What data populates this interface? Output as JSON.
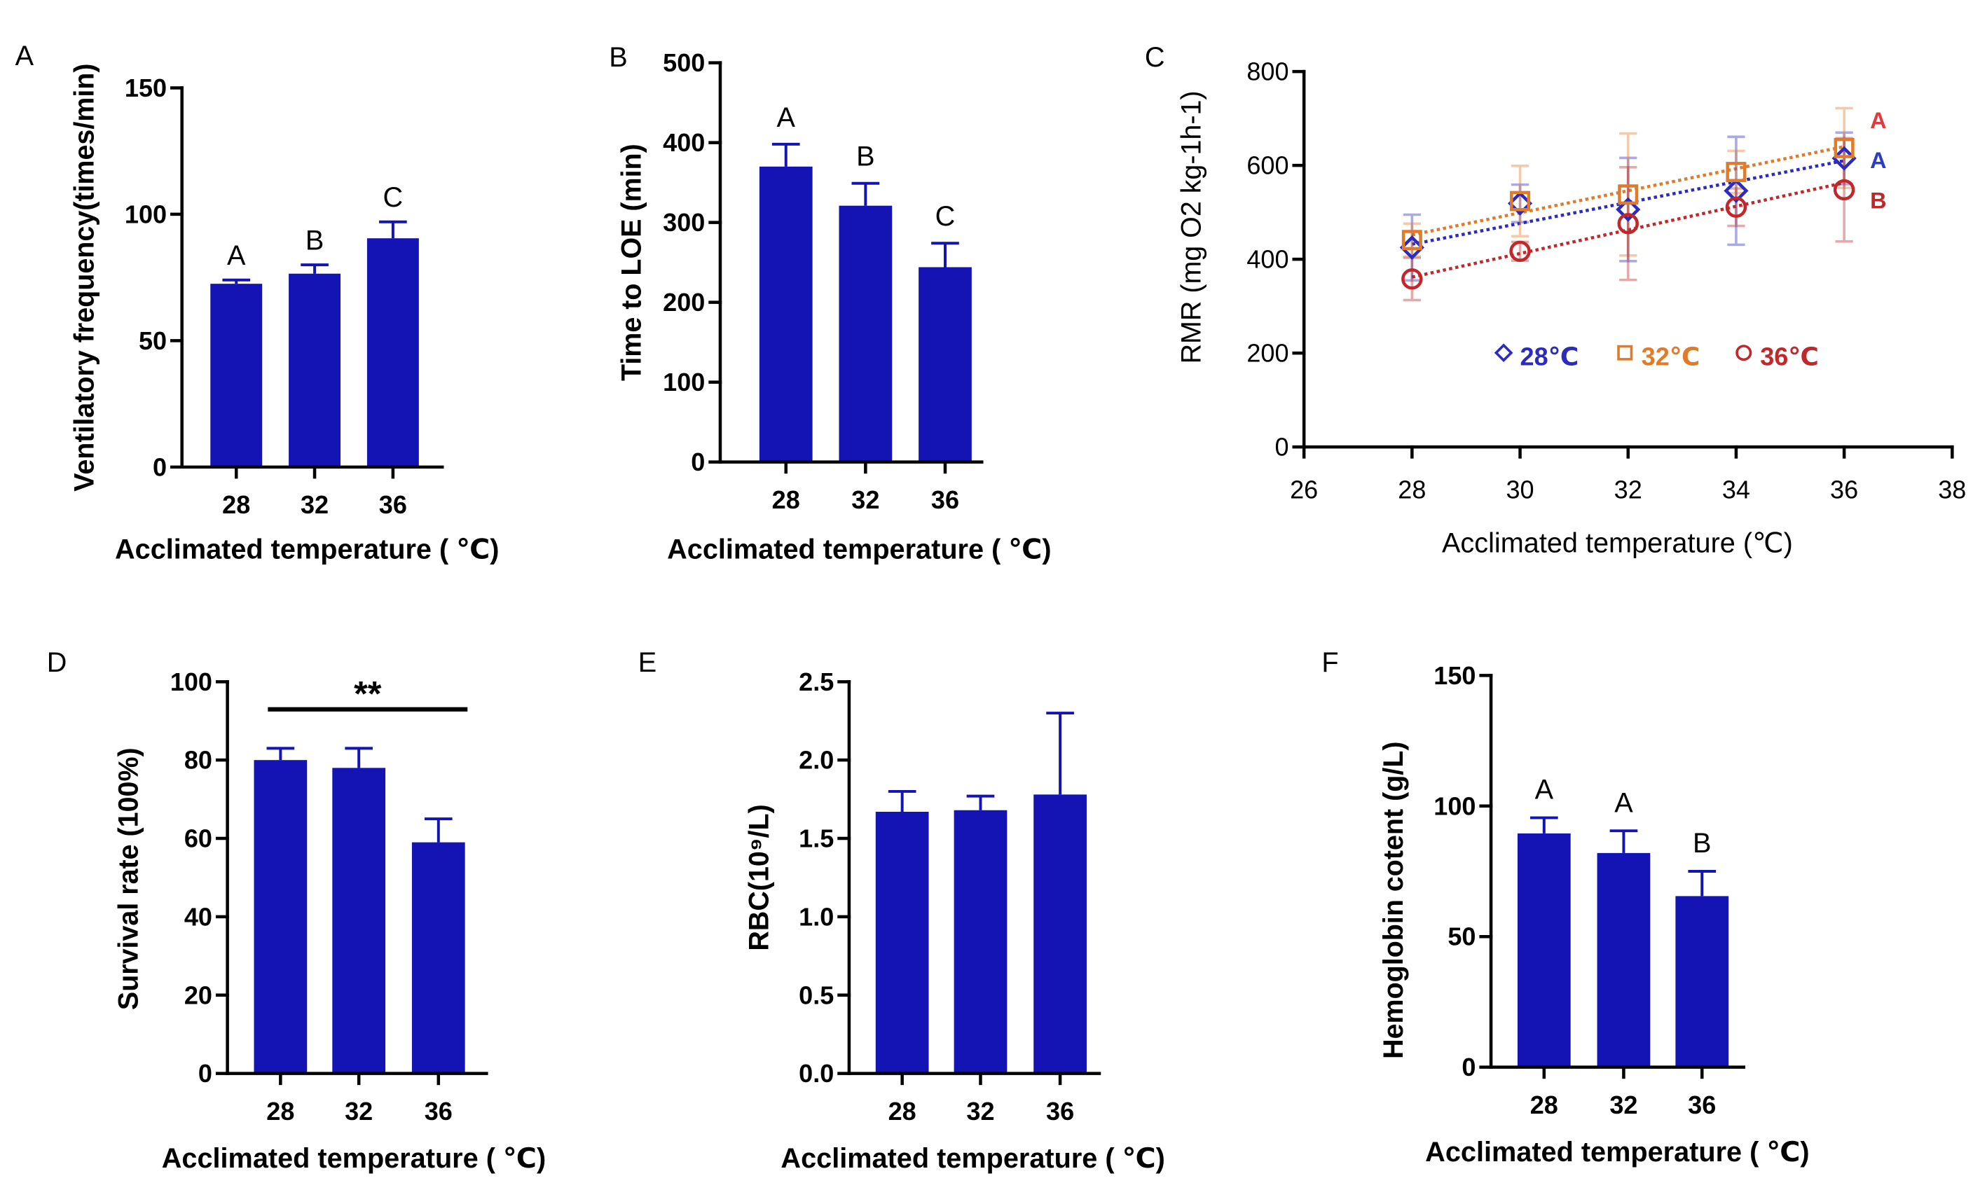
{
  "figure": {
    "background": "#ffffff",
    "bar_color": "#1414b4",
    "axis_color": "#000000"
  },
  "chart_data": [
    {
      "panel": "A",
      "type": "bar",
      "categories": [
        "28",
        "32",
        "36"
      ],
      "values": [
        72.5,
        76.5,
        90.5
      ],
      "errors": [
        1.5,
        3.5,
        6.5
      ],
      "letters": [
        "A",
        "B",
        "C"
      ],
      "ylim": [
        0,
        150
      ],
      "yticks": [
        "0",
        "50",
        "100",
        "150"
      ],
      "xlabel": "Acclimated temperature ( ℃)",
      "ylabel": "Ventilatory frequency(times/min)"
    },
    {
      "panel": "B",
      "type": "bar",
      "categories": [
        "28",
        "32",
        "36"
      ],
      "values": [
        370,
        321,
        244
      ],
      "errors": [
        28,
        28,
        30
      ],
      "letters": [
        "A",
        "B",
        "C"
      ],
      "ylim": [
        0,
        500
      ],
      "yticks": [
        "0",
        "100",
        "200",
        "300",
        "400",
        "500"
      ],
      "xlabel": "Acclimated temperature ( ℃)",
      "ylabel": "Time to LOE (min)"
    },
    {
      "panel": "C",
      "type": "scatter",
      "x": [
        28,
        30,
        32,
        34,
        36
      ],
      "xlim": [
        26,
        38
      ],
      "ylim": [
        0,
        800
      ],
      "xticks": [
        "26",
        "28",
        "30",
        "32",
        "34",
        "36",
        "38"
      ],
      "yticks": [
        "0",
        "200",
        "400",
        "600",
        "800"
      ],
      "xlabel": "Acclimated temperature (℃)",
      "ylabel": "RMR (mg O2 kg-1h-1)",
      "series": [
        {
          "name": "28℃",
          "marker": "diamond",
          "color": "#2b2bbf",
          "values": [
            425,
            519,
            506,
            546,
            615
          ],
          "errors": [
            70,
            40,
            110,
            115,
            55
          ],
          "trend": [
            432,
            610
          ],
          "group": "A",
          "group_color": "#2b3fc4"
        },
        {
          "name": "32℃",
          "marker": "square",
          "color": "#e07b2a",
          "values": [
            441,
            524,
            538,
            586,
            637
          ],
          "errors": [
            35,
            75,
            130,
            45,
            85
          ],
          "trend": [
            452,
            640
          ],
          "group": "A",
          "group_color": "#e03c3c"
        },
        {
          "name": "36℃",
          "marker": "circle",
          "color": "#c0282a",
          "values": [
            358,
            417,
            476,
            511,
            548
          ],
          "errors": [
            45,
            20,
            120,
            40,
            110
          ],
          "trend": [
            362,
            563
          ],
          "group": "B",
          "group_color": "#c02828"
        }
      ]
    },
    {
      "panel": "D",
      "type": "bar",
      "categories": [
        "28",
        "32",
        "36"
      ],
      "values": [
        80,
        78,
        59
      ],
      "errors": [
        3,
        5,
        6
      ],
      "ylim": [
        0,
        100
      ],
      "yticks": [
        "0",
        "20",
        "40",
        "60",
        "80",
        "100"
      ],
      "xlabel": "Acclimated temperature ( ℃)",
      "ylabel": "Survival rate (100%)",
      "significance": {
        "label": "**",
        "span_categories": [
          28,
          36
        ]
      }
    },
    {
      "panel": "E",
      "type": "bar",
      "categories": [
        "28",
        "32",
        "36"
      ],
      "values": [
        1.67,
        1.68,
        1.78
      ],
      "errors": [
        0.13,
        0.09,
        0.52
      ],
      "ylim": [
        0,
        2.5
      ],
      "yticks": [
        "0.0",
        "0.5",
        "1.0",
        "1.5",
        "2.0",
        "2.5"
      ],
      "xlabel": "Acclimated temperature ( ℃)",
      "ylabel": "RBC(10⁹/L)"
    },
    {
      "panel": "F",
      "type": "bar",
      "categories": [
        "28",
        "32",
        "36"
      ],
      "values": [
        89.5,
        82,
        65.5
      ],
      "errors": [
        6,
        8.5,
        9.5
      ],
      "letters": [
        "A",
        "A",
        "B"
      ],
      "ylim": [
        0,
        150
      ],
      "yticks": [
        "0",
        "50",
        "100",
        "150"
      ],
      "xlabel": "Acclimated temperature ( ℃)",
      "ylabel": "Hemoglobin cotent (g/L)"
    }
  ]
}
